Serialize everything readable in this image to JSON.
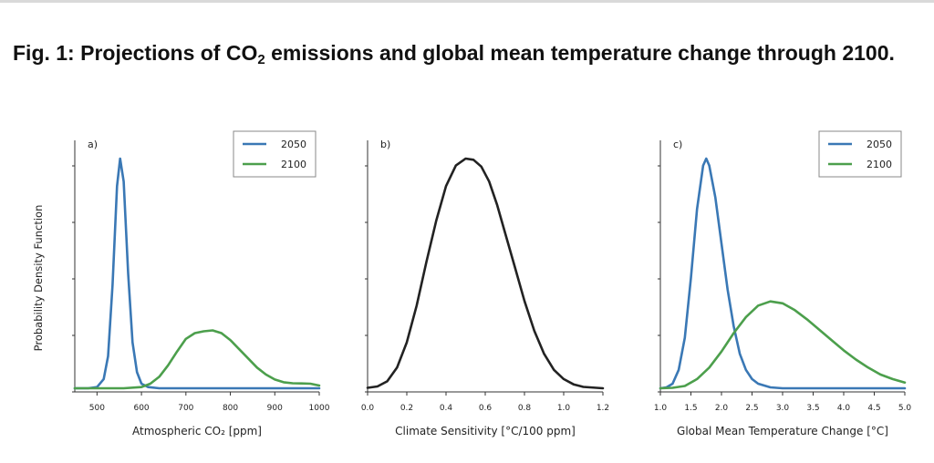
{
  "figure": {
    "title_prefix": "Fig. 1: Projections of CO",
    "title_sub": "2",
    "title_suffix": " emissions and global mean temperature change through 2100."
  },
  "chart_data": [
    {
      "type": "line",
      "panel": "a)",
      "xlabel": "Atmospheric CO₂ [ppm]",
      "ylabel": "Probability Density Function",
      "xlim": [
        450,
        1000
      ],
      "ylim": [
        0,
        1
      ],
      "xticks": [
        500,
        600,
        700,
        800,
        900,
        1000
      ],
      "xtick_labels": [
        "500",
        "600",
        "700",
        "800",
        "900",
        "1000"
      ],
      "grid": false,
      "legend": "top-right",
      "series": [
        {
          "name": "2050",
          "color": "#3a78b5",
          "x": [
            450,
            480,
            500,
            515,
            525,
            535,
            545,
            552,
            560,
            570,
            580,
            590,
            600,
            615,
            640,
            700,
            800,
            1000
          ],
          "y": [
            0,
            0,
            0.005,
            0.04,
            0.14,
            0.45,
            0.88,
            1.0,
            0.9,
            0.5,
            0.2,
            0.07,
            0.02,
            0.005,
            0,
            0,
            0,
            0
          ]
        },
        {
          "name": "2100",
          "color": "#4c9f4c",
          "x": [
            450,
            560,
            600,
            620,
            640,
            660,
            680,
            700,
            720,
            740,
            760,
            780,
            800,
            820,
            840,
            860,
            880,
            900,
            920,
            940,
            960,
            980,
            1000
          ],
          "y": [
            0,
            0,
            0.005,
            0.02,
            0.05,
            0.1,
            0.16,
            0.215,
            0.24,
            0.248,
            0.252,
            0.24,
            0.21,
            0.17,
            0.13,
            0.09,
            0.06,
            0.038,
            0.026,
            0.022,
            0.021,
            0.02,
            0.012
          ]
        }
      ]
    },
    {
      "type": "line",
      "panel": "b)",
      "xlabel": "Climate Sensitivity [°C/100 ppm]",
      "ylabel": "",
      "xlim": [
        0,
        1.2
      ],
      "ylim": [
        0,
        1
      ],
      "xticks": [
        0.0,
        0.2,
        0.4,
        0.6,
        0.8,
        1.0,
        1.2
      ],
      "xtick_labels": [
        "0.0",
        "0.2",
        "0.4",
        "0.6",
        "0.8",
        "1.0",
        "1.2"
      ],
      "grid": false,
      "legend": "none",
      "series": [
        {
          "name": "",
          "color": "#222222",
          "x": [
            0,
            0.05,
            0.1,
            0.15,
            0.2,
            0.25,
            0.3,
            0.35,
            0.4,
            0.45,
            0.5,
            0.54,
            0.58,
            0.62,
            0.66,
            0.7,
            0.75,
            0.8,
            0.85,
            0.9,
            0.95,
            1.0,
            1.05,
            1.1,
            1.2
          ],
          "y": [
            0.002,
            0.008,
            0.03,
            0.09,
            0.2,
            0.36,
            0.55,
            0.73,
            0.88,
            0.97,
            1.0,
            0.995,
            0.965,
            0.9,
            0.8,
            0.68,
            0.53,
            0.38,
            0.25,
            0.15,
            0.08,
            0.04,
            0.017,
            0.006,
            0
          ]
        }
      ]
    },
    {
      "type": "line",
      "panel": "c)",
      "xlabel": "Global Mean Temperature Change [°C]",
      "ylabel": "",
      "xlim": [
        1.0,
        5.0
      ],
      "ylim": [
        0,
        1
      ],
      "xticks": [
        1.0,
        1.5,
        2.0,
        2.5,
        3.0,
        3.5,
        4.0,
        4.5,
        5.0
      ],
      "xtick_labels": [
        "1.0",
        "1.5",
        "2.0",
        "2.5",
        "3.0",
        "3.5",
        "4.0",
        "4.5",
        "5.0"
      ],
      "grid": false,
      "legend": "top-right",
      "series": [
        {
          "name": "2050",
          "color": "#3a78b5",
          "x": [
            1.0,
            1.1,
            1.2,
            1.3,
            1.4,
            1.5,
            1.6,
            1.7,
            1.75,
            1.8,
            1.9,
            2.0,
            2.1,
            2.2,
            2.3,
            2.4,
            2.5,
            2.6,
            2.8,
            3.0,
            5.0
          ],
          "y": [
            0,
            0.004,
            0.02,
            0.08,
            0.22,
            0.48,
            0.78,
            0.97,
            1.0,
            0.97,
            0.83,
            0.63,
            0.43,
            0.27,
            0.15,
            0.08,
            0.04,
            0.02,
            0.004,
            0,
            0
          ]
        },
        {
          "name": "2100",
          "color": "#4c9f4c",
          "x": [
            1.0,
            1.2,
            1.4,
            1.6,
            1.8,
            2.0,
            2.2,
            2.4,
            2.6,
            2.8,
            3.0,
            3.2,
            3.4,
            3.6,
            3.8,
            4.0,
            4.2,
            4.4,
            4.6,
            4.8,
            5.0
          ],
          "y": [
            0,
            0.002,
            0.01,
            0.04,
            0.09,
            0.16,
            0.24,
            0.31,
            0.36,
            0.378,
            0.37,
            0.34,
            0.3,
            0.255,
            0.21,
            0.165,
            0.125,
            0.09,
            0.06,
            0.04,
            0.025
          ]
        }
      ]
    }
  ]
}
